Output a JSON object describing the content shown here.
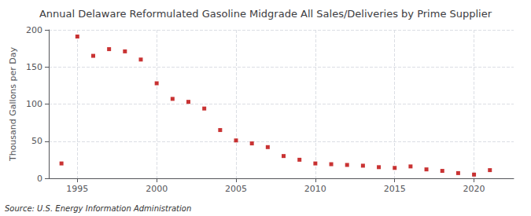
{
  "chart_data": {
    "type": "scatter",
    "title": "Annual Delaware Reformulated Gasoline Midgrade All Sales/Deliveries by Prime Supplier",
    "ylabel": "Thousand Gallons per Day",
    "source": "Source: U.S. Energy Information Administration",
    "x": [
      1994,
      1995,
      1996,
      1997,
      1998,
      1999,
      2000,
      2001,
      2002,
      2003,
      2004,
      2005,
      2006,
      2007,
      2008,
      2009,
      2010,
      2011,
      2012,
      2013,
      2014,
      2015,
      2016,
      2017,
      2018,
      2019,
      2020,
      2021
    ],
    "values": [
      20,
      191,
      165,
      174,
      171,
      160,
      128,
      107,
      103,
      94,
      65,
      51,
      47,
      42,
      30,
      25,
      20,
      19,
      18,
      17,
      15,
      14,
      16,
      12,
      10,
      7,
      5,
      11
    ],
    "color": "#bb0000",
    "marker": "square",
    "xlim": [
      1993.2,
      2022.5
    ],
    "xticks": [
      1995,
      2000,
      2005,
      2010,
      2015,
      2020
    ],
    "ylim": [
      0,
      200
    ],
    "yticks": [
      0,
      50,
      100,
      150,
      200
    ],
    "grid": true
  }
}
